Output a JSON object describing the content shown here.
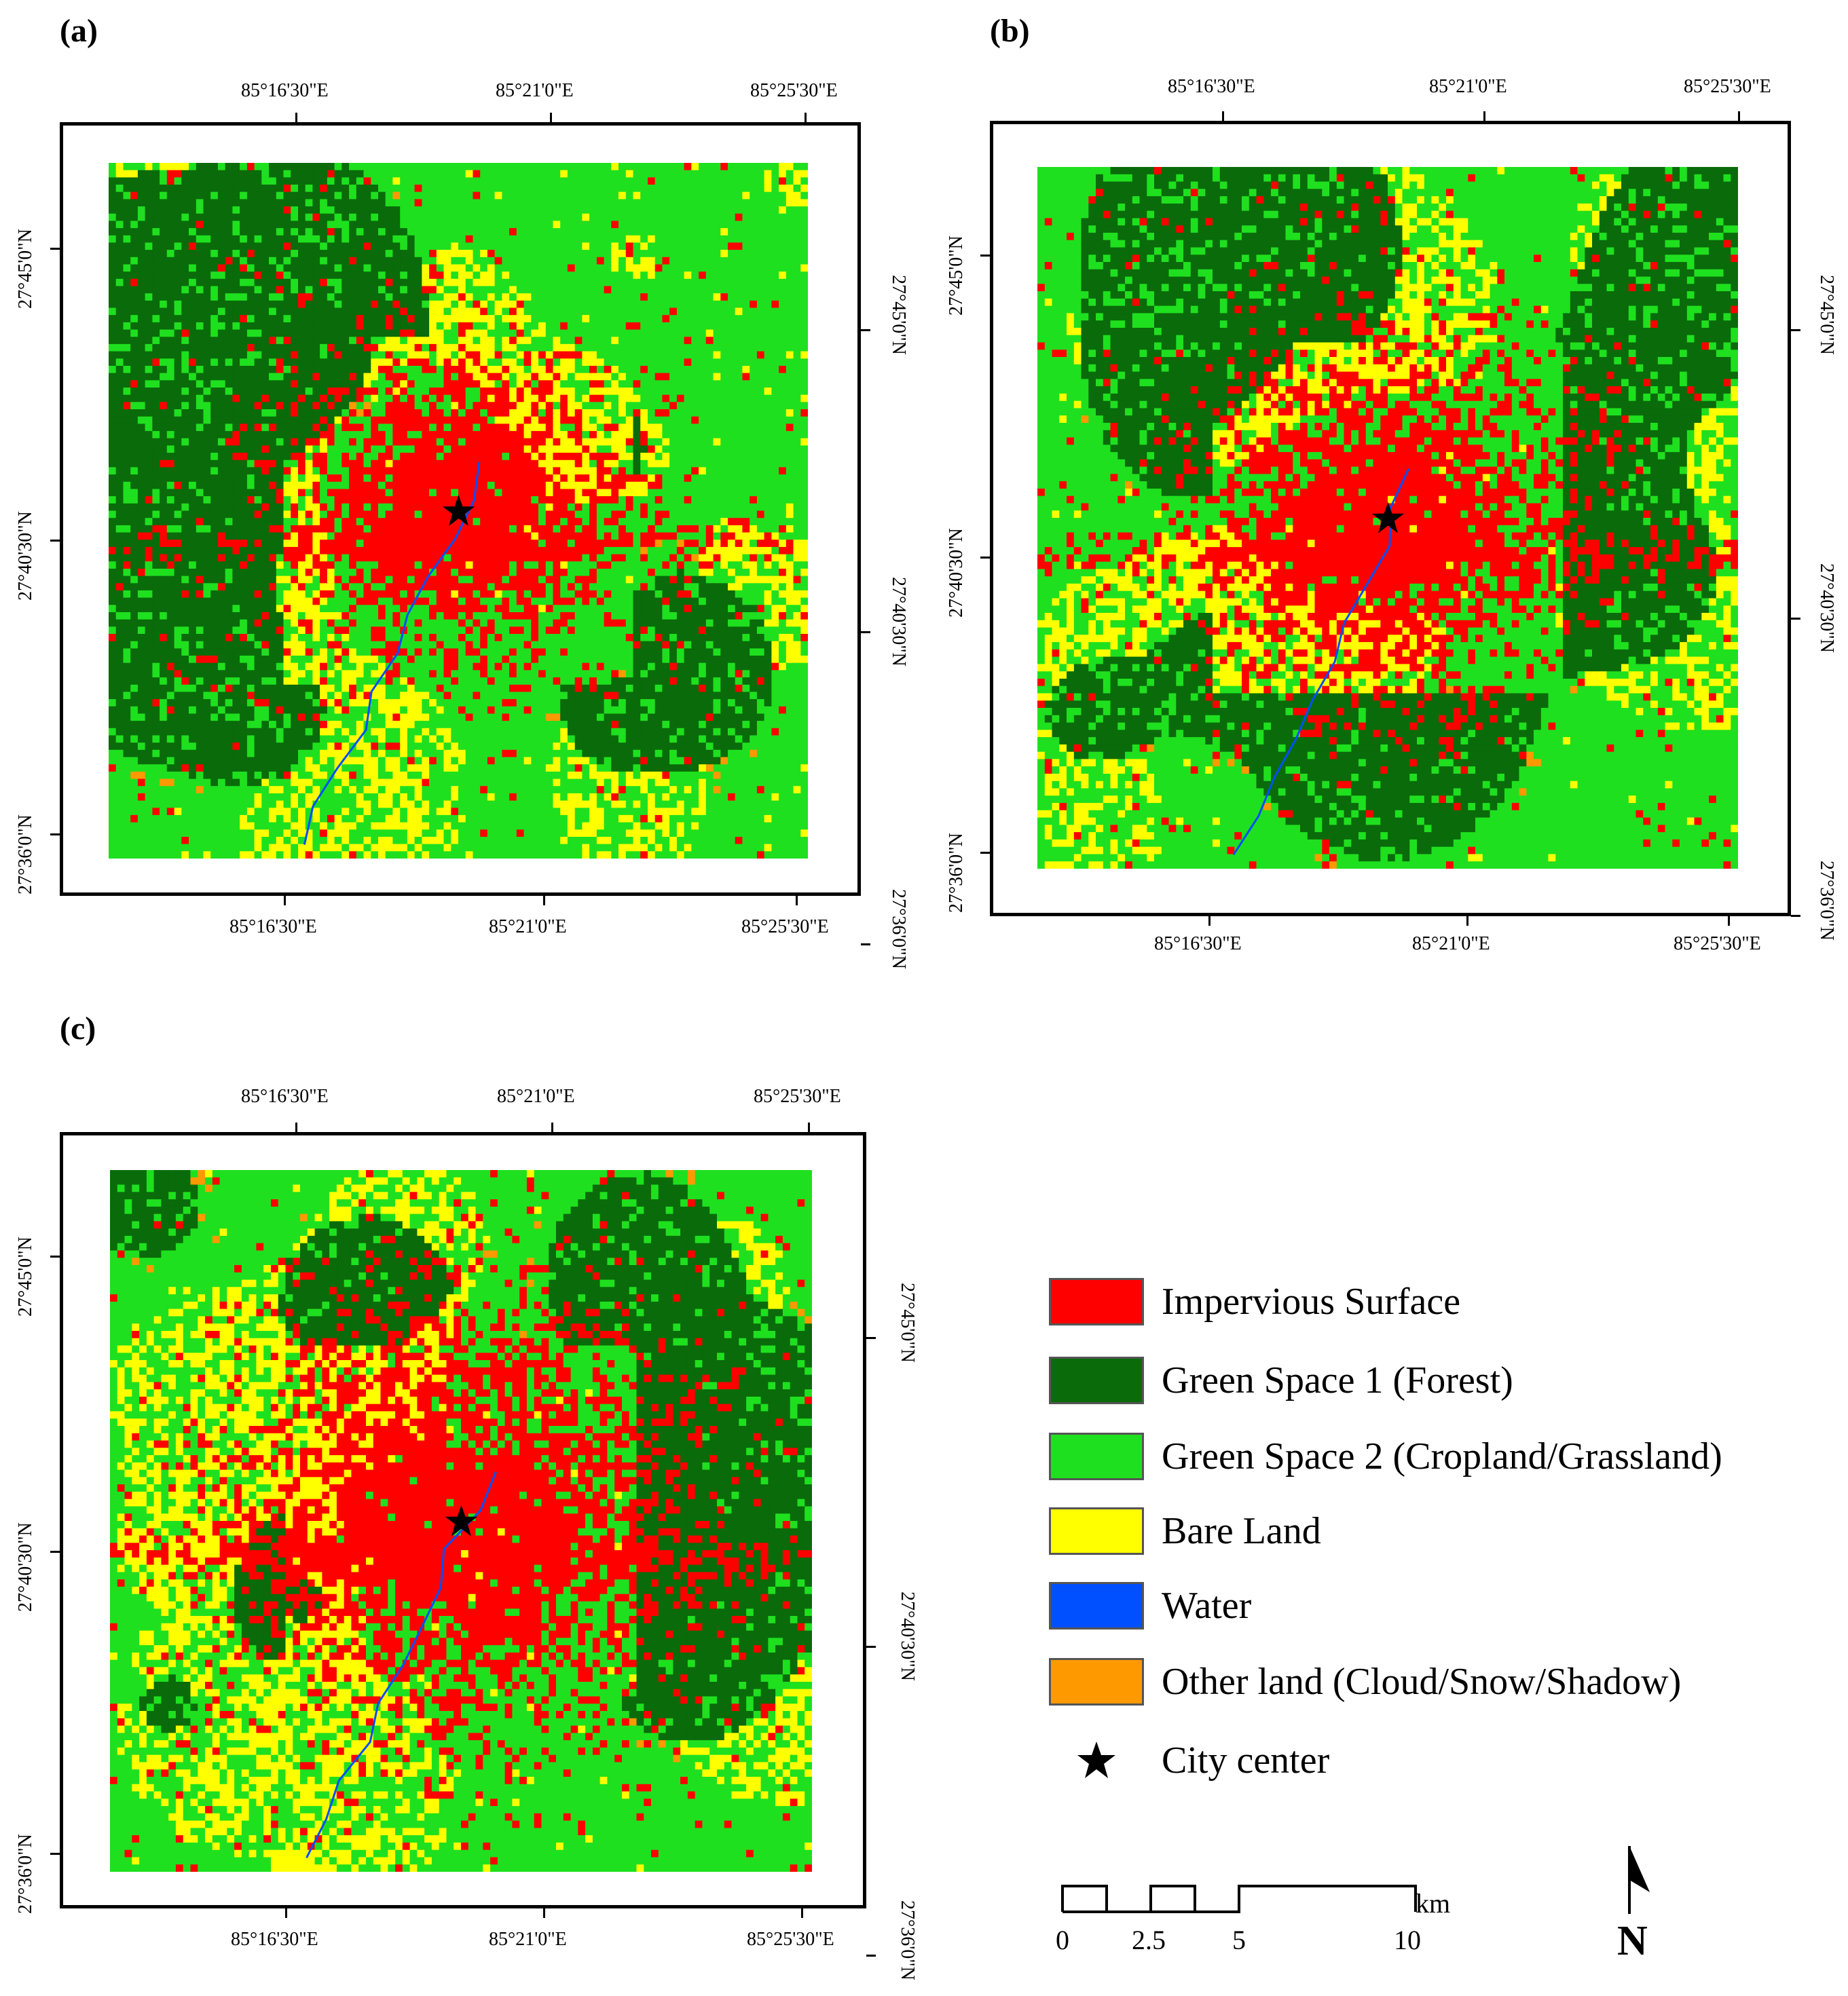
{
  "panels": [
    {
      "letter": "(a)",
      "top_labels": [
        "85°16'30\"E",
        "85°21'0\"E",
        "85°25'30\"E"
      ],
      "bottom_labels": [
        "85°16'30\"E",
        "85°21'0\"E",
        "85°25'30\"E"
      ],
      "left_labels": [
        "27°45'0\"N",
        "27°40'30\"N",
        "27°36'0\"N"
      ],
      "right_labels": [
        "27°45'0\"N",
        "27°40'30\"N",
        "27°36'0\"N"
      ],
      "urban_scale": 0.85,
      "seed": 11
    },
    {
      "letter": "(b)",
      "top_labels": [
        "85°16'30\"E",
        "85°21'0\"E",
        "85°25'30\"E"
      ],
      "bottom_labels": [
        "85°16'30\"E",
        "85°21'0\"E",
        "85°25'30\"E"
      ],
      "left_labels": [
        "27°45'0\"N",
        "27°40'30\"N",
        "27°36'0\"N"
      ],
      "right_labels": [
        "27°45'0\"N",
        "27°40'30\"N",
        "27°36'0\"N"
      ],
      "urban_scale": 0.92,
      "seed": 23
    },
    {
      "letter": "(c)",
      "top_labels": [
        "85°16'30\"E",
        "85°21'0\"E",
        "85°25'30\"E"
      ],
      "bottom_labels": [
        "85°16'30\"E",
        "85°21'0\"E",
        "85°25'30\"E"
      ],
      "left_labels": [
        "27°45'0\"N",
        "27°40'30\"N",
        "27°36'0\"N"
      ],
      "right_labels": [
        "27°45'0\"N",
        "27°40'30\"N",
        "27°36'0\"N"
      ],
      "urban_scale": 1.1,
      "seed": 37
    }
  ],
  "legend": [
    {
      "label": "Impervious Surface",
      "color": "#ff0000"
    },
    {
      "label": "Green Space 1 (Forest)",
      "color": "#0a6b0a"
    },
    {
      "label": "Green Space 2 (Cropland/Grassland)",
      "color": "#1fe01f"
    },
    {
      "label": "Bare Land",
      "color": "#ffff00"
    },
    {
      "label": "Water",
      "color": "#0050ff"
    },
    {
      "label": "Other land (Cloud/Snow/Shadow)",
      "color": "#ff9900"
    }
  ],
  "city_center": {
    "label": "City center",
    "icon": "star-icon"
  },
  "scale_bar": {
    "labels": [
      "0",
      "2.5",
      "5",
      "10"
    ],
    "unit": "km"
  },
  "north_arrow": {
    "label": "N",
    "icon": "north-arrow-icon"
  }
}
